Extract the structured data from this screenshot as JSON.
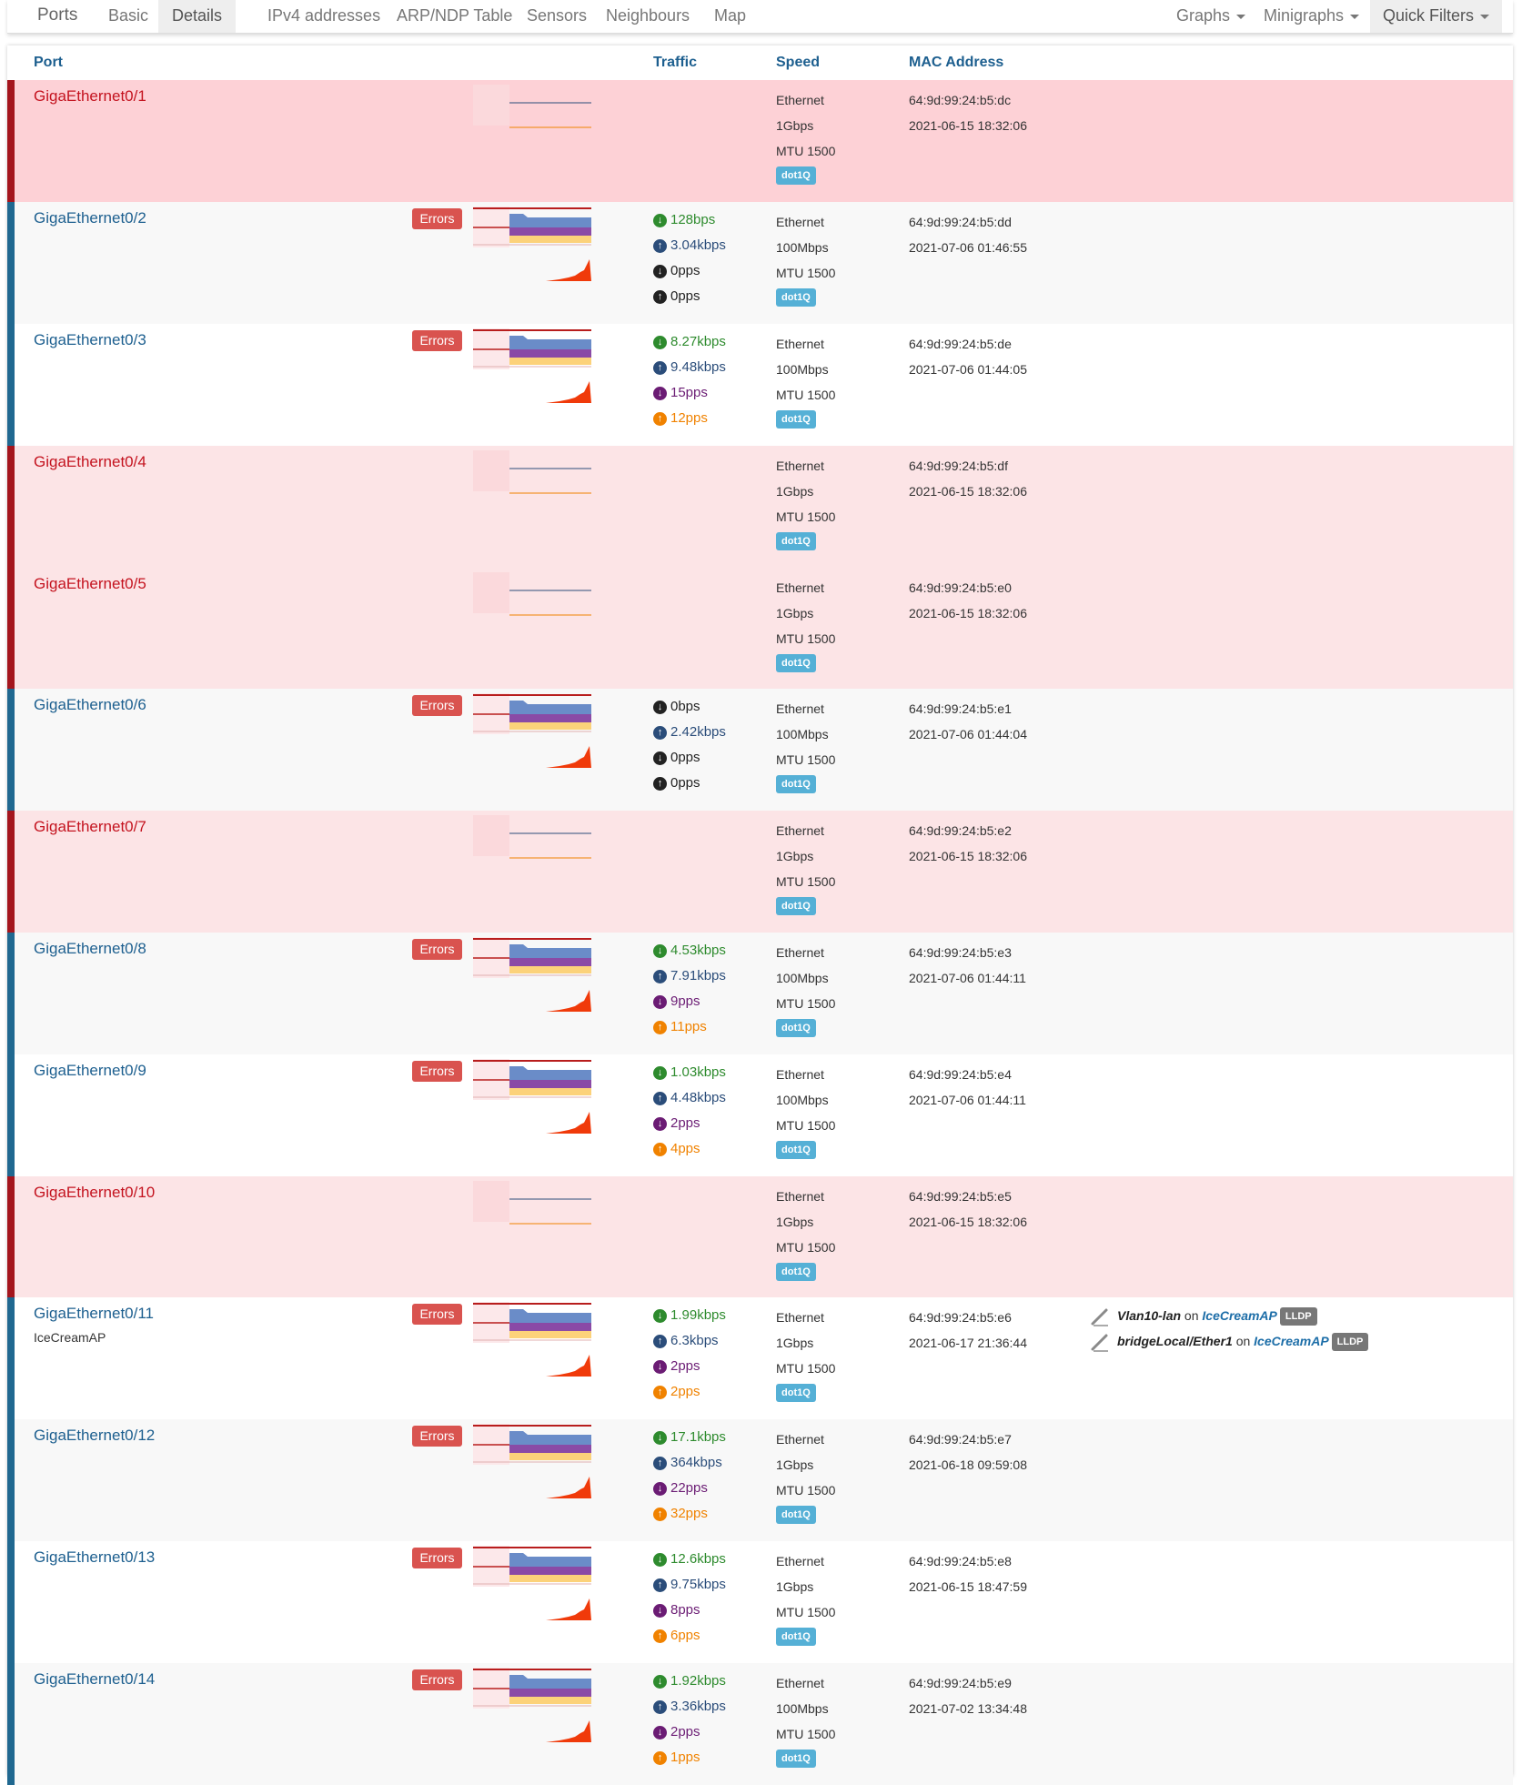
{
  "navbar": {
    "title": "Ports",
    "tabs": [
      "Basic",
      "Details",
      "IPv4 addresses",
      "ARP/NDP Table",
      "Sensors",
      "Neighbours",
      "Map"
    ],
    "active_tab": "Details",
    "right": [
      "Graphs",
      "Minigraphs",
      "Quick Filters"
    ]
  },
  "table": {
    "headers": {
      "port": "Port",
      "traffic": "Traffic",
      "speed": "Speed",
      "mac": "MAC Address"
    },
    "errors_label": "Errors",
    "vlan_badge": "dot1Q",
    "neighbour_on": "on",
    "lldp_badge": "LLDP"
  },
  "colors": {
    "port_up": "#1d5f8f",
    "port_down": "#c4131f",
    "errors": "#d9534f",
    "badge": "#55b0d6"
  },
  "ports": [
    {
      "name": "GigaEthernet0/1",
      "status": "down",
      "errors": false,
      "traffic": [],
      "speed": [
        "Ethernet",
        "1Gbps",
        "MTU 1500"
      ],
      "mac": "64:9d:99:24:b5:dc",
      "changed": "2021-06-15 18:32:06"
    },
    {
      "name": "GigaEthernet0/2",
      "status": "up",
      "errors": true,
      "traffic": [
        {
          "icon": "arrow-down",
          "color": "g",
          "value": "128bps"
        },
        {
          "icon": "arrow-up",
          "color": "b",
          "value": "3.04kbps"
        },
        {
          "icon": "arrow-down",
          "color": "k",
          "value": "0pps"
        },
        {
          "icon": "arrow-up",
          "color": "k",
          "value": "0pps"
        }
      ],
      "speed": [
        "Ethernet",
        "100Mbps",
        "MTU 1500"
      ],
      "mac": "64:9d:99:24:b5:dd",
      "changed": "2021-07-06 01:46:55"
    },
    {
      "name": "GigaEthernet0/3",
      "status": "up",
      "errors": true,
      "traffic": [
        {
          "icon": "arrow-down",
          "color": "g",
          "value": "8.27kbps"
        },
        {
          "icon": "arrow-up",
          "color": "b",
          "value": "9.48kbps"
        },
        {
          "icon": "arrow-down",
          "color": "p",
          "value": "15pps"
        },
        {
          "icon": "arrow-up",
          "color": "o",
          "value": "12pps"
        }
      ],
      "speed": [
        "Ethernet",
        "100Mbps",
        "MTU 1500"
      ],
      "mac": "64:9d:99:24:b5:de",
      "changed": "2021-07-06 01:44:05"
    },
    {
      "name": "GigaEthernet0/4",
      "status": "down",
      "errors": false,
      "traffic": [],
      "speed": [
        "Ethernet",
        "1Gbps",
        "MTU 1500"
      ],
      "mac": "64:9d:99:24:b5:df",
      "changed": "2021-06-15 18:32:06"
    },
    {
      "name": "GigaEthernet0/5",
      "status": "down",
      "errors": false,
      "traffic": [],
      "speed": [
        "Ethernet",
        "1Gbps",
        "MTU 1500"
      ],
      "mac": "64:9d:99:24:b5:e0",
      "changed": "2021-06-15 18:32:06"
    },
    {
      "name": "GigaEthernet0/6",
      "status": "up",
      "errors": true,
      "traffic": [
        {
          "icon": "arrow-down",
          "color": "k",
          "value": "0bps"
        },
        {
          "icon": "arrow-up",
          "color": "b",
          "value": "2.42kbps"
        },
        {
          "icon": "arrow-down",
          "color": "k",
          "value": "0pps"
        },
        {
          "icon": "arrow-up",
          "color": "k",
          "value": "0pps"
        }
      ],
      "speed": [
        "Ethernet",
        "100Mbps",
        "MTU 1500"
      ],
      "mac": "64:9d:99:24:b5:e1",
      "changed": "2021-07-06 01:44:04"
    },
    {
      "name": "GigaEthernet0/7",
      "status": "down",
      "errors": false,
      "traffic": [],
      "speed": [
        "Ethernet",
        "1Gbps",
        "MTU 1500"
      ],
      "mac": "64:9d:99:24:b5:e2",
      "changed": "2021-06-15 18:32:06"
    },
    {
      "name": "GigaEthernet0/8",
      "status": "up",
      "errors": true,
      "traffic": [
        {
          "icon": "arrow-down",
          "color": "g",
          "value": "4.53kbps"
        },
        {
          "icon": "arrow-up",
          "color": "b",
          "value": "7.91kbps"
        },
        {
          "icon": "arrow-down",
          "color": "p",
          "value": "9pps"
        },
        {
          "icon": "arrow-up",
          "color": "o",
          "value": "11pps"
        }
      ],
      "speed": [
        "Ethernet",
        "100Mbps",
        "MTU 1500"
      ],
      "mac": "64:9d:99:24:b5:e3",
      "changed": "2021-07-06 01:44:11"
    },
    {
      "name": "GigaEthernet0/9",
      "status": "up",
      "errors": true,
      "traffic": [
        {
          "icon": "arrow-down",
          "color": "g",
          "value": "1.03kbps"
        },
        {
          "icon": "arrow-up",
          "color": "b",
          "value": "4.48kbps"
        },
        {
          "icon": "arrow-down",
          "color": "p",
          "value": "2pps"
        },
        {
          "icon": "arrow-up",
          "color": "o",
          "value": "4pps"
        }
      ],
      "speed": [
        "Ethernet",
        "100Mbps",
        "MTU 1500"
      ],
      "mac": "64:9d:99:24:b5:e4",
      "changed": "2021-07-06 01:44:11"
    },
    {
      "name": "GigaEthernet0/10",
      "status": "down",
      "errors": false,
      "traffic": [],
      "speed": [
        "Ethernet",
        "1Gbps",
        "MTU 1500"
      ],
      "mac": "64:9d:99:24:b5:e5",
      "changed": "2021-06-15 18:32:06"
    },
    {
      "name": "GigaEthernet0/11",
      "description": "IceCreamAP",
      "status": "up",
      "errors": true,
      "traffic": [
        {
          "icon": "arrow-down",
          "color": "g",
          "value": "1.99kbps"
        },
        {
          "icon": "arrow-up",
          "color": "b",
          "value": "6.3kbps"
        },
        {
          "icon": "arrow-down",
          "color": "p",
          "value": "2pps"
        },
        {
          "icon": "arrow-up",
          "color": "o",
          "value": "2pps"
        }
      ],
      "speed": [
        "Ethernet",
        "1Gbps",
        "MTU 1500"
      ],
      "mac": "64:9d:99:24:b5:e6",
      "changed": "2021-06-17 21:36:44",
      "neighbours": [
        {
          "interface": "Vlan10-lan",
          "host": "IceCreamAP"
        },
        {
          "interface": "bridgeLocal/Ether1",
          "host": "IceCreamAP"
        }
      ]
    },
    {
      "name": "GigaEthernet0/12",
      "status": "up",
      "errors": true,
      "traffic": [
        {
          "icon": "arrow-down",
          "color": "g",
          "value": "17.1kbps"
        },
        {
          "icon": "arrow-up",
          "color": "b",
          "value": "364kbps"
        },
        {
          "icon": "arrow-down",
          "color": "p",
          "value": "22pps"
        },
        {
          "icon": "arrow-up",
          "color": "o",
          "value": "32pps"
        }
      ],
      "speed": [
        "Ethernet",
        "1Gbps",
        "MTU 1500"
      ],
      "mac": "64:9d:99:24:b5:e7",
      "changed": "2021-06-18 09:59:08"
    },
    {
      "name": "GigaEthernet0/13",
      "status": "up",
      "errors": true,
      "traffic": [
        {
          "icon": "arrow-down",
          "color": "g",
          "value": "12.6kbps"
        },
        {
          "icon": "arrow-up",
          "color": "b",
          "value": "9.75kbps"
        },
        {
          "icon": "arrow-down",
          "color": "p",
          "value": "8pps"
        },
        {
          "icon": "arrow-up",
          "color": "o",
          "value": "6pps"
        }
      ],
      "speed": [
        "Ethernet",
        "1Gbps",
        "MTU 1500"
      ],
      "mac": "64:9d:99:24:b5:e8",
      "changed": "2021-06-15 18:47:59"
    },
    {
      "name": "GigaEthernet0/14",
      "status": "up",
      "errors": true,
      "traffic": [
        {
          "icon": "arrow-down",
          "color": "g",
          "value": "1.92kbps"
        },
        {
          "icon": "arrow-up",
          "color": "b",
          "value": "3.36kbps"
        },
        {
          "icon": "arrow-down",
          "color": "p",
          "value": "2pps"
        },
        {
          "icon": "arrow-up",
          "color": "o",
          "value": "1pps"
        }
      ],
      "speed": [
        "Ethernet",
        "100Mbps",
        "MTU 1500"
      ],
      "mac": "64:9d:99:24:b5:e9",
      "changed": "2021-07-02 13:34:48"
    }
  ]
}
